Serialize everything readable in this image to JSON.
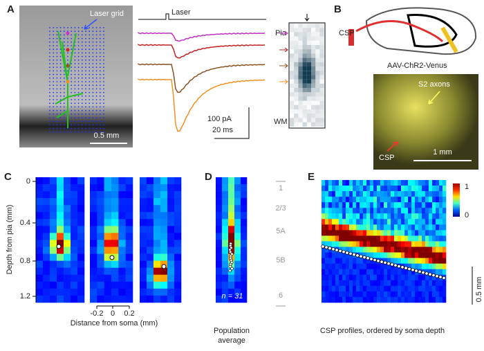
{
  "panel_a": {
    "label": "A",
    "laser_grid": "Laser grid",
    "scale": "0.5 mm",
    "laser": "Laser",
    "pia": "Pia",
    "wm": "WM",
    "scale_current": "100 pA",
    "scale_time": "20 ms"
  },
  "panel_b": {
    "label": "B",
    "csp": "CSP",
    "virus": "AAV-ChR2-Venus",
    "axons": "S2 axons",
    "csp_image": "CSP",
    "scale": "1 mm"
  },
  "panel_c": {
    "label": "C",
    "y_title": "Depth from pia (mm)",
    "y_ticks": [
      "0",
      "0.4",
      "0.8",
      "1.2"
    ],
    "x_ticks": [
      "-0.2",
      "0",
      "0.2"
    ],
    "x_title": "Distance from soma (mm)"
  },
  "panel_d": {
    "label": "D",
    "n_label": "n = 31",
    "caption": [
      "Population",
      "average"
    ],
    "layers": [
      "1",
      "2/3",
      "5A",
      "5B",
      "6"
    ]
  },
  "panel_e": {
    "label": "E",
    "colorbar_ticks": [
      "1",
      "0"
    ],
    "scale": "0.5 mm",
    "caption": "CSP profiles, ordered by soma depth"
  }
}
